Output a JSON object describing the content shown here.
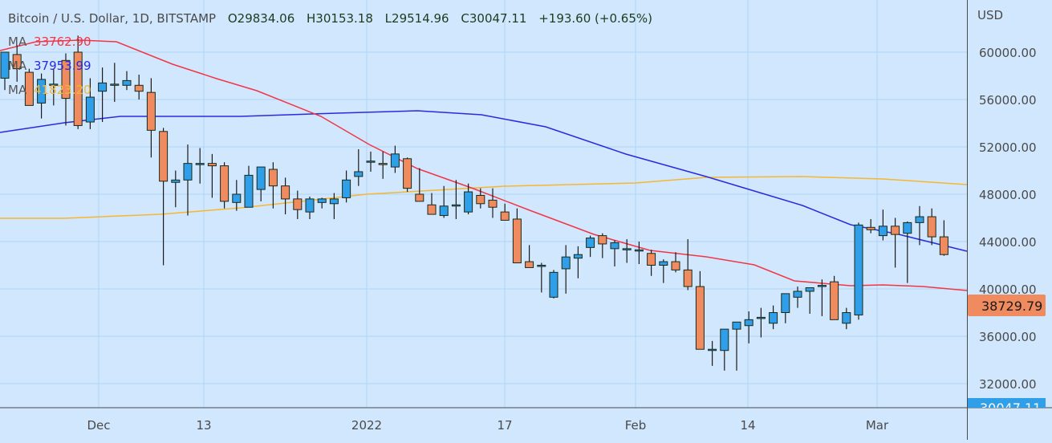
{
  "header": {
    "symbol": "Bitcoin / U.S. Dollar, 1D, BITSTAMP",
    "open": "O29834.06",
    "high": "H30153.18",
    "low": "L29514.96",
    "close": "C30047.11",
    "change": "+193.60 (+0.65%)"
  },
  "indicators": [
    {
      "label": "MA",
      "value": "33762.90",
      "color": "#f23645"
    },
    {
      "label": "MA",
      "value": "37953.99",
      "color": "#2a2ae0"
    },
    {
      "label": "MA",
      "value": "41823.20",
      "color": "#f5b731"
    }
  ],
  "price_axis": {
    "currency": "USD",
    "ticks": [
      "60000.00",
      "56000.00",
      "52000.00",
      "48000.00",
      "44000.00",
      "40000.00",
      "36000.00",
      "32000.00"
    ],
    "last_price_label": "38729.79",
    "current_price_label": "30047.11"
  },
  "time_axis": {
    "ticks": [
      "Dec",
      "13",
      "2022",
      "17",
      "Feb",
      "14",
      "Mar"
    ]
  },
  "colors": {
    "background": "#d1e7fd",
    "grid": "#b0d4f7",
    "up": "#2e9fe8",
    "down": "#ef8b5e",
    "wick": "#1a1a1a",
    "ma_fast": "#f23645",
    "ma_mid": "#2a2ae0",
    "ma_slow": "#f5b731",
    "last_price_bg": "#ef8b5e",
    "current_price_bg": "#2e9fe8"
  },
  "chart_data": {
    "type": "candlestick",
    "title": "Bitcoin / U.S. Dollar, 1D, BITSTAMP",
    "ylabel": "USD",
    "ylim": [
      30500,
      64400
    ],
    "x_tick_labels": [
      "Dec",
      "13",
      "2022",
      "17",
      "Feb",
      "14",
      "Mar"
    ],
    "candles": [
      [
        57800,
        59900,
        56800,
        60000
      ],
      [
        59800,
        60600,
        57500,
        58600
      ],
      [
        58300,
        58600,
        55600,
        55500
      ],
      [
        55700,
        58200,
        54400,
        57700
      ],
      [
        57300,
        58600,
        55500,
        57300
      ],
      [
        59300,
        59900,
        53800,
        56100
      ],
      [
        60000,
        61400,
        53500,
        53800
      ],
      [
        54100,
        57800,
        53500,
        56200
      ],
      [
        56700,
        58700,
        54100,
        57400
      ],
      [
        57300,
        59100,
        55800,
        57300
      ],
      [
        57200,
        58400,
        56800,
        57600
      ],
      [
        57200,
        58100,
        56000,
        56700
      ],
      [
        56600,
        57800,
        51100,
        53400
      ],
      [
        53300,
        53600,
        42000,
        49100
      ],
      [
        49000,
        50000,
        46900,
        49200
      ],
      [
        49200,
        52200,
        46200,
        50600
      ],
      [
        50600,
        51900,
        48900,
        50600
      ],
      [
        50600,
        51400,
        47700,
        50400
      ],
      [
        50400,
        50700,
        46800,
        47400
      ],
      [
        47300,
        49200,
        46600,
        48000
      ],
      [
        46900,
        50400,
        46900,
        49600
      ],
      [
        48400,
        50000,
        47400,
        50300
      ],
      [
        50100,
        50700,
        46800,
        48700
      ],
      [
        48700,
        49400,
        46300,
        47600
      ],
      [
        47600,
        48300,
        45900,
        46700
      ],
      [
        46500,
        47800,
        45900,
        47600
      ],
      [
        47300,
        47700,
        46800,
        47600
      ],
      [
        47200,
        48100,
        45900,
        47600
      ],
      [
        47700,
        50000,
        47300,
        49200
      ],
      [
        49500,
        51800,
        48700,
        49900
      ],
      [
        50800,
        51600,
        49900,
        50800
      ],
      [
        50600,
        51600,
        49300,
        50500
      ],
      [
        50300,
        52100,
        49800,
        51400
      ],
      [
        51000,
        51100,
        48200,
        48500
      ],
      [
        48000,
        50200,
        47700,
        47400
      ],
      [
        47100,
        48100,
        46500,
        46300
      ],
      [
        46200,
        48700,
        46000,
        47000
      ],
      [
        47100,
        49200,
        45900,
        47100
      ],
      [
        46500,
        48900,
        46300,
        48200
      ],
      [
        47900,
        48500,
        46800,
        47200
      ],
      [
        47500,
        48500,
        46000,
        46900
      ],
      [
        46500,
        47200,
        45900,
        45800
      ],
      [
        45900,
        46800,
        42900,
        42200
      ],
      [
        42300,
        43700,
        42000,
        41800
      ],
      [
        41900,
        42200,
        39700,
        42000
      ],
      [
        39300,
        41600,
        39200,
        41400
      ],
      [
        41700,
        43700,
        39600,
        42700
      ],
      [
        42600,
        43600,
        40900,
        42900
      ],
      [
        43500,
        44500,
        42700,
        44300
      ],
      [
        44500,
        44700,
        42600,
        43800
      ],
      [
        43400,
        44100,
        41900,
        43900
      ],
      [
        43400,
        44200,
        42200,
        43400
      ],
      [
        43300,
        44000,
        42100,
        43300
      ],
      [
        43000,
        43300,
        41100,
        42000
      ],
      [
        42000,
        42500,
        40500,
        42300
      ],
      [
        42300,
        43100,
        41400,
        41600
      ],
      [
        41600,
        44200,
        39900,
        40200
      ],
      [
        40200,
        41500,
        35000,
        34900
      ],
      [
        34900,
        35600,
        33500,
        34900
      ],
      [
        34800,
        35000,
        33100,
        36600
      ],
      [
        36600,
        37200,
        33100,
        37200
      ],
      [
        36900,
        38100,
        35400,
        37400
      ],
      [
        37500,
        38400,
        35900,
        37600
      ],
      [
        37100,
        38600,
        36600,
        38000
      ],
      [
        38000,
        39500,
        37100,
        39600
      ],
      [
        39300,
        40200,
        38400,
        39800
      ],
      [
        39800,
        40100,
        37900,
        40100
      ],
      [
        40200,
        40800,
        37700,
        40300
      ],
      [
        40600,
        41100,
        37600,
        37400
      ],
      [
        37100,
        38400,
        36600,
        38000
      ],
      [
        37800,
        45600,
        37400,
        45400
      ],
      [
        45200,
        45900,
        44700,
        45000
      ],
      [
        44500,
        46700,
        44100,
        45300
      ],
      [
        45300,
        46000,
        41800,
        44600
      ],
      [
        44700,
        45700,
        40500,
        45600
      ],
      [
        45600,
        47000,
        43700,
        46100
      ],
      [
        46100,
        46800,
        43700,
        44400
      ],
      [
        44400,
        45800,
        42800,
        42900
      ]
    ],
    "ma_fast": {
      "name": "MA",
      "last": "33762.90"
    },
    "ma_mid": {
      "name": "MA",
      "last": "37953.99"
    },
    "ma_slow": {
      "name": "MA",
      "last": "41823.20"
    }
  }
}
